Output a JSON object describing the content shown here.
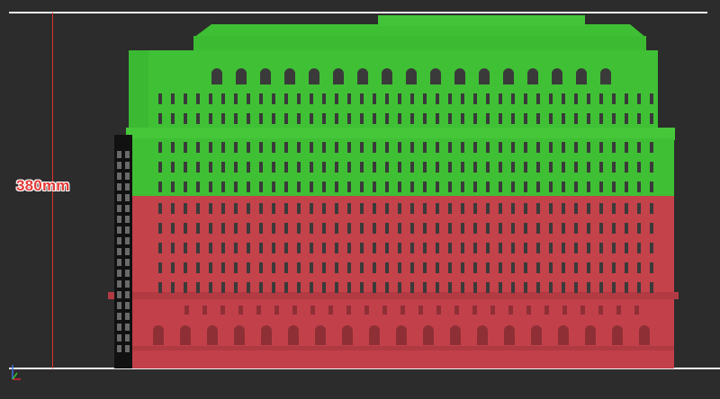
{
  "viewport": {
    "background": "#2c2c2c",
    "model": "building-elevation",
    "colors": {
      "upper_section": "#3fbf34",
      "lower_section": "#c4424a",
      "window": "#3a3a3a",
      "tower_strip": "#111111",
      "dimension_line": "#e5322d",
      "guide_line": "#f2f2f2"
    }
  },
  "dimension": {
    "label": "380mm"
  },
  "gizmo": {
    "icon": "axis-gizmo-icon"
  }
}
